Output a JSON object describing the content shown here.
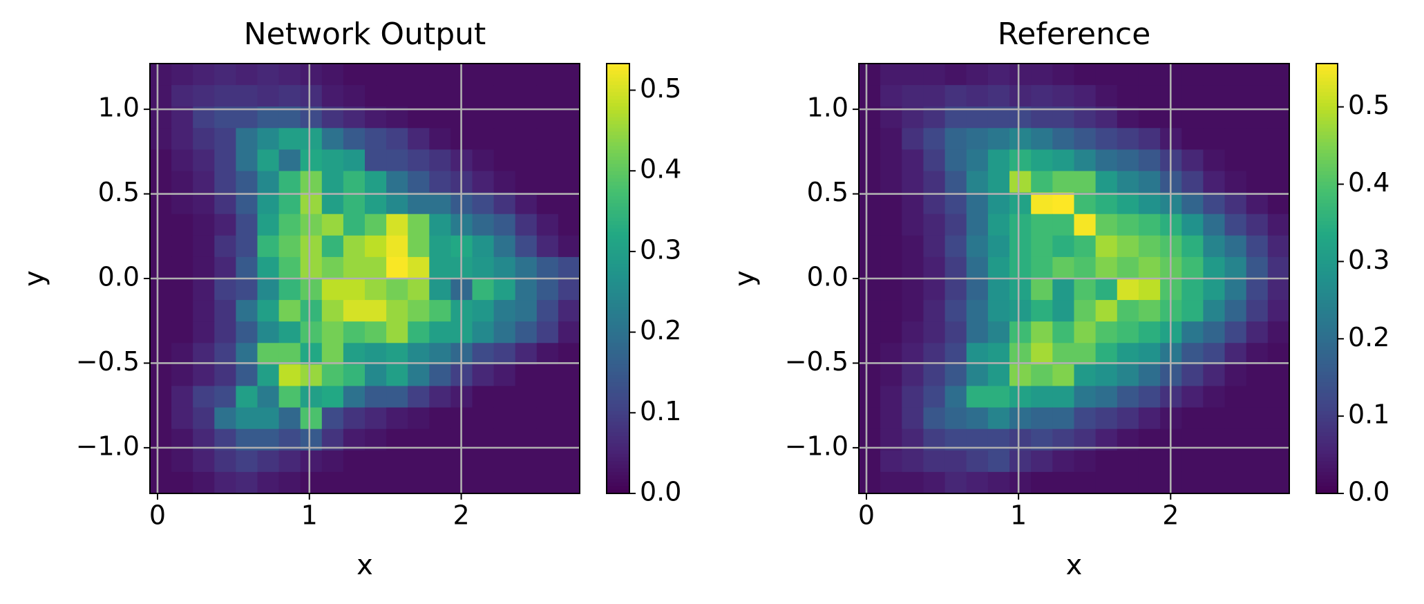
{
  "chart_data": [
    {
      "type": "heatmap",
      "title": "Network Output",
      "xlabel": "x",
      "ylabel": "y",
      "colormap": "viridis",
      "grid": true,
      "xlim": [
        -0.05,
        2.78
      ],
      "ylim": [
        -1.27,
        1.27
      ],
      "xticks": [
        0,
        1,
        2
      ],
      "yticks": [
        {
          "value": -1,
          "label": "−1.0"
        },
        {
          "value": -0.5,
          "label": "−0.5"
        },
        {
          "value": 0,
          "label": "0.0"
        },
        {
          "value": 0.5,
          "label": "0.5"
        },
        {
          "value": 1,
          "label": "1.0"
        }
      ],
      "colorbar": {
        "lim": [
          0,
          0.533
        ],
        "ticks": [
          {
            "value": 0,
            "label": "0.0"
          },
          {
            "value": 0.1,
            "label": "0.1"
          },
          {
            "value": 0.2,
            "label": "0.2"
          },
          {
            "value": 0.3,
            "label": "0.3"
          },
          {
            "value": 0.4,
            "label": "0.4"
          },
          {
            "value": 0.5,
            "label": "0.5"
          }
        ]
      },
      "z": [
        [
          0.03,
          0.04,
          0.05,
          0.06,
          0.05,
          0.06,
          0.05,
          0.04,
          0.03,
          0.02,
          0.02,
          0.02,
          0.02,
          0.02,
          0.02,
          0.02,
          0.02,
          0.02,
          0.02,
          0.02
        ],
        [
          0.03,
          0.06,
          0.07,
          0.08,
          0.08,
          0.07,
          0.08,
          0.07,
          0.04,
          0.03,
          0.02,
          0.02,
          0.02,
          0.02,
          0.02,
          0.02,
          0.02,
          0.02,
          0.02,
          0.02
        ],
        [
          0.03,
          0.05,
          0.1,
          0.12,
          0.12,
          0.15,
          0.15,
          0.12,
          0.08,
          0.06,
          0.04,
          0.03,
          0.02,
          0.02,
          0.02,
          0.02,
          0.02,
          0.02,
          0.02,
          0.02
        ],
        [
          0.03,
          0.05,
          0.08,
          0.1,
          0.2,
          0.25,
          0.3,
          0.3,
          0.2,
          0.15,
          0.12,
          0.1,
          0.06,
          0.03,
          0.02,
          0.02,
          0.02,
          0.02,
          0.02,
          0.02
        ],
        [
          0.02,
          0.04,
          0.06,
          0.1,
          0.2,
          0.3,
          0.2,
          0.32,
          0.3,
          0.28,
          0.12,
          0.12,
          0.1,
          0.08,
          0.05,
          0.03,
          0.02,
          0.02,
          0.02,
          0.02
        ],
        [
          0.02,
          0.03,
          0.05,
          0.1,
          0.15,
          0.25,
          0.35,
          0.42,
          0.3,
          0.35,
          0.3,
          0.2,
          0.15,
          0.1,
          0.08,
          0.05,
          0.03,
          0.02,
          0.02,
          0.02
        ],
        [
          0.02,
          0.03,
          0.04,
          0.08,
          0.15,
          0.28,
          0.35,
          0.45,
          0.3,
          0.35,
          0.3,
          0.25,
          0.2,
          0.2,
          0.15,
          0.12,
          0.08,
          0.04,
          0.02,
          0.02
        ],
        [
          0.02,
          0.02,
          0.03,
          0.05,
          0.12,
          0.3,
          0.38,
          0.42,
          0.45,
          0.35,
          0.4,
          0.5,
          0.42,
          0.28,
          0.22,
          0.18,
          0.15,
          0.08,
          0.04,
          0.02
        ],
        [
          0.02,
          0.02,
          0.03,
          0.08,
          0.12,
          0.35,
          0.4,
          0.45,
          0.35,
          0.45,
          0.48,
          0.52,
          0.42,
          0.3,
          0.32,
          0.27,
          0.2,
          0.12,
          0.06,
          0.03
        ],
        [
          0.02,
          0.02,
          0.03,
          0.06,
          0.15,
          0.3,
          0.38,
          0.45,
          0.42,
          0.45,
          0.45,
          0.53,
          0.5,
          0.3,
          0.3,
          0.28,
          0.25,
          0.2,
          0.15,
          0.12
        ],
        [
          0.02,
          0.02,
          0.04,
          0.1,
          0.12,
          0.25,
          0.35,
          0.4,
          0.48,
          0.48,
          0.45,
          0.42,
          0.45,
          0.28,
          0.18,
          0.35,
          0.3,
          0.2,
          0.15,
          0.1
        ],
        [
          0.02,
          0.02,
          0.04,
          0.08,
          0.2,
          0.3,
          0.42,
          0.35,
          0.45,
          0.5,
          0.5,
          0.45,
          0.42,
          0.38,
          0.3,
          0.28,
          0.22,
          0.2,
          0.12,
          0.06
        ],
        [
          0.02,
          0.02,
          0.04,
          0.08,
          0.15,
          0.25,
          0.3,
          0.38,
          0.42,
          0.38,
          0.4,
          0.45,
          0.35,
          0.3,
          0.3,
          0.25,
          0.2,
          0.15,
          0.1,
          0.04
        ],
        [
          0.02,
          0.03,
          0.06,
          0.1,
          0.2,
          0.4,
          0.4,
          0.32,
          0.42,
          0.3,
          0.28,
          0.3,
          0.25,
          0.22,
          0.18,
          0.12,
          0.1,
          0.06,
          0.03,
          0.02
        ],
        [
          0.02,
          0.03,
          0.05,
          0.08,
          0.15,
          0.3,
          0.48,
          0.45,
          0.38,
          0.35,
          0.25,
          0.3,
          0.22,
          0.15,
          0.1,
          0.06,
          0.04,
          0.02,
          0.02,
          0.02
        ],
        [
          0.02,
          0.05,
          0.1,
          0.12,
          0.3,
          0.22,
          0.38,
          0.3,
          0.32,
          0.2,
          0.15,
          0.15,
          0.1,
          0.06,
          0.04,
          0.02,
          0.02,
          0.02,
          0.02,
          0.02
        ],
        [
          0.02,
          0.05,
          0.08,
          0.2,
          0.25,
          0.25,
          0.18,
          0.38,
          0.12,
          0.08,
          0.06,
          0.04,
          0.03,
          0.02,
          0.02,
          0.02,
          0.02,
          0.02,
          0.02,
          0.02
        ],
        [
          0.02,
          0.03,
          0.06,
          0.1,
          0.15,
          0.15,
          0.12,
          0.15,
          0.08,
          0.04,
          0.03,
          0.02,
          0.02,
          0.02,
          0.02,
          0.02,
          0.02,
          0.02,
          0.02,
          0.02
        ],
        [
          0.02,
          0.03,
          0.05,
          0.08,
          0.1,
          0.08,
          0.06,
          0.04,
          0.03,
          0.02,
          0.02,
          0.02,
          0.02,
          0.02,
          0.02,
          0.02,
          0.02,
          0.02,
          0.02,
          0.02
        ],
        [
          0.02,
          0.02,
          0.03,
          0.05,
          0.06,
          0.04,
          0.03,
          0.02,
          0.02,
          0.02,
          0.02,
          0.02,
          0.02,
          0.02,
          0.02,
          0.02,
          0.02,
          0.02,
          0.02,
          0.02
        ]
      ]
    },
    {
      "type": "heatmap",
      "title": "Reference",
      "xlabel": "x",
      "ylabel": "y",
      "colormap": "viridis",
      "grid": true,
      "xlim": [
        -0.05,
        2.78
      ],
      "ylim": [
        -1.27,
        1.27
      ],
      "xticks": [
        0,
        1,
        2
      ],
      "yticks": [
        {
          "value": -1,
          "label": "−1.0"
        },
        {
          "value": -0.5,
          "label": "−0.5"
        },
        {
          "value": 0,
          "label": "0.0"
        },
        {
          "value": 0.5,
          "label": "0.5"
        },
        {
          "value": 1,
          "label": "1.0"
        }
      ],
      "colorbar": {
        "lim": [
          0,
          0.556
        ],
        "ticks": [
          {
            "value": 0,
            "label": "0.0"
          },
          {
            "value": 0.1,
            "label": "0.1"
          },
          {
            "value": 0.2,
            "label": "0.2"
          },
          {
            "value": 0.3,
            "label": "0.3"
          },
          {
            "value": 0.4,
            "label": "0.4"
          },
          {
            "value": 0.5,
            "label": "0.5"
          }
        ]
      },
      "z": [
        [
          0.02,
          0.04,
          0.04,
          0.04,
          0.03,
          0.04,
          0.05,
          0.04,
          0.04,
          0.03,
          0.02,
          0.02,
          0.02,
          0.02,
          0.02,
          0.02,
          0.02,
          0.02,
          0.02,
          0.02
        ],
        [
          0.02,
          0.05,
          0.06,
          0.06,
          0.08,
          0.07,
          0.08,
          0.06,
          0.07,
          0.06,
          0.05,
          0.03,
          0.02,
          0.02,
          0.02,
          0.02,
          0.02,
          0.02,
          0.02,
          0.02
        ],
        [
          0.02,
          0.04,
          0.06,
          0.08,
          0.12,
          0.12,
          0.12,
          0.12,
          0.1,
          0.1,
          0.08,
          0.06,
          0.03,
          0.02,
          0.02,
          0.02,
          0.02,
          0.02,
          0.02,
          0.02
        ],
        [
          0.02,
          0.03,
          0.08,
          0.12,
          0.18,
          0.2,
          0.22,
          0.25,
          0.22,
          0.18,
          0.15,
          0.12,
          0.1,
          0.08,
          0.04,
          0.02,
          0.02,
          0.02,
          0.02,
          0.02
        ],
        [
          0.02,
          0.03,
          0.05,
          0.1,
          0.18,
          0.22,
          0.3,
          0.35,
          0.32,
          0.3,
          0.25,
          0.2,
          0.18,
          0.15,
          0.1,
          0.06,
          0.03,
          0.02,
          0.02,
          0.02
        ],
        [
          0.02,
          0.03,
          0.05,
          0.08,
          0.15,
          0.25,
          0.3,
          0.48,
          0.38,
          0.42,
          0.42,
          0.3,
          0.25,
          0.22,
          0.15,
          0.1,
          0.05,
          0.03,
          0.02,
          0.02
        ],
        [
          0.02,
          0.02,
          0.04,
          0.08,
          0.12,
          0.2,
          0.28,
          0.32,
          0.55,
          0.56,
          0.38,
          0.35,
          0.32,
          0.28,
          0.25,
          0.18,
          0.12,
          0.08,
          0.04,
          0.02
        ],
        [
          0.02,
          0.02,
          0.04,
          0.06,
          0.1,
          0.2,
          0.3,
          0.35,
          0.38,
          0.38,
          0.55,
          0.42,
          0.4,
          0.38,
          0.35,
          0.28,
          0.2,
          0.12,
          0.08,
          0.04
        ],
        [
          0.02,
          0.02,
          0.03,
          0.06,
          0.12,
          0.22,
          0.28,
          0.35,
          0.38,
          0.35,
          0.38,
          0.48,
          0.45,
          0.42,
          0.4,
          0.35,
          0.25,
          0.2,
          0.12,
          0.06
        ],
        [
          0.02,
          0.02,
          0.03,
          0.05,
          0.1,
          0.2,
          0.3,
          0.35,
          0.38,
          0.42,
          0.4,
          0.45,
          0.42,
          0.45,
          0.42,
          0.38,
          0.3,
          0.25,
          0.15,
          0.08
        ],
        [
          0.02,
          0.02,
          0.03,
          0.05,
          0.1,
          0.18,
          0.28,
          0.32,
          0.42,
          0.3,
          0.4,
          0.35,
          0.52,
          0.5,
          0.4,
          0.35,
          0.3,
          0.22,
          0.12,
          0.06
        ],
        [
          0.02,
          0.02,
          0.03,
          0.06,
          0.12,
          0.2,
          0.28,
          0.3,
          0.35,
          0.3,
          0.42,
          0.48,
          0.4,
          0.42,
          0.38,
          0.35,
          0.25,
          0.18,
          0.1,
          0.05
        ],
        [
          0.02,
          0.02,
          0.04,
          0.06,
          0.1,
          0.2,
          0.25,
          0.38,
          0.45,
          0.38,
          0.45,
          0.4,
          0.38,
          0.35,
          0.32,
          0.22,
          0.18,
          0.12,
          0.06,
          0.03
        ],
        [
          0.02,
          0.03,
          0.05,
          0.08,
          0.12,
          0.28,
          0.3,
          0.42,
          0.48,
          0.42,
          0.42,
          0.35,
          0.3,
          0.28,
          0.22,
          0.15,
          0.12,
          0.06,
          0.03,
          0.02
        ],
        [
          0.02,
          0.03,
          0.06,
          0.1,
          0.15,
          0.25,
          0.3,
          0.45,
          0.42,
          0.45,
          0.3,
          0.28,
          0.25,
          0.2,
          0.15,
          0.1,
          0.06,
          0.03,
          0.02,
          0.02
        ],
        [
          0.02,
          0.04,
          0.08,
          0.12,
          0.2,
          0.35,
          0.35,
          0.32,
          0.3,
          0.3,
          0.22,
          0.2,
          0.15,
          0.12,
          0.08,
          0.05,
          0.03,
          0.02,
          0.02,
          0.02
        ],
        [
          0.02,
          0.04,
          0.08,
          0.15,
          0.18,
          0.2,
          0.25,
          0.2,
          0.18,
          0.18,
          0.12,
          0.1,
          0.08,
          0.05,
          0.03,
          0.02,
          0.02,
          0.02,
          0.02,
          0.02
        ],
        [
          0.02,
          0.04,
          0.06,
          0.1,
          0.12,
          0.12,
          0.12,
          0.1,
          0.12,
          0.1,
          0.08,
          0.05,
          0.03,
          0.02,
          0.02,
          0.02,
          0.02,
          0.02,
          0.02,
          0.02
        ],
        [
          0.02,
          0.05,
          0.06,
          0.08,
          0.08,
          0.1,
          0.12,
          0.08,
          0.06,
          0.04,
          0.03,
          0.02,
          0.02,
          0.02,
          0.02,
          0.02,
          0.02,
          0.02,
          0.02,
          0.02
        ],
        [
          0.02,
          0.03,
          0.03,
          0.04,
          0.06,
          0.05,
          0.04,
          0.03,
          0.02,
          0.02,
          0.02,
          0.02,
          0.02,
          0.02,
          0.02,
          0.02,
          0.02,
          0.02,
          0.02,
          0.02
        ]
      ]
    }
  ]
}
